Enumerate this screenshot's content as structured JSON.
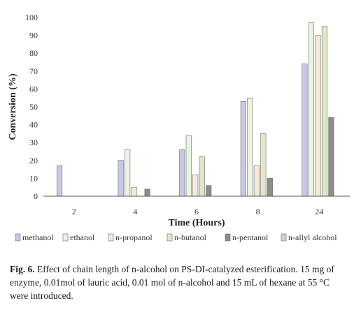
{
  "chart_data": {
    "type": "bar",
    "categories": [
      "2",
      "4",
      "6",
      "8",
      "24"
    ],
    "series": [
      {
        "name": "methanol",
        "color": "#c8c8e4",
        "values": [
          17,
          20,
          26,
          53,
          74
        ]
      },
      {
        "name": "ethanol",
        "color": "#e9f4e2",
        "values": [
          null,
          26,
          34,
          55,
          97
        ]
      },
      {
        "name": "n-propanol",
        "color": "#f8e8d6",
        "values": [
          null,
          5,
          12,
          17,
          90
        ]
      },
      {
        "name": "n-butanol",
        "color": "#dfe7c8",
        "values": [
          null,
          null,
          22,
          35,
          95
        ]
      },
      {
        "name": "n-pentanol",
        "color": "#8c8c8c",
        "values": [
          null,
          4,
          6,
          10,
          44
        ]
      },
      {
        "name": "n-allyl alcohol",
        "color": "#d0d0d0",
        "values": [
          null,
          null,
          null,
          null,
          null
        ]
      }
    ],
    "xlabel": "Time (Hours)",
    "ylabel": "Conversion (%)",
    "ylim": [
      0,
      100
    ],
    "yticks": [
      "0",
      "10",
      "20",
      "30",
      "40",
      "50",
      "60",
      "70",
      "80",
      "90",
      "100"
    ],
    "grid": false,
    "legend_position": "bottom"
  },
  "caption": {
    "label": "Fig. 6.",
    "text": " Effect of chain length of n-alcohol on PS-DI-catalyzed esterification. 15 mg of enzyme, 0.01mol of lauric acid, 0.01 mol of n-alcohol and 15 mL of hexane at 55 °C were introduced."
  }
}
